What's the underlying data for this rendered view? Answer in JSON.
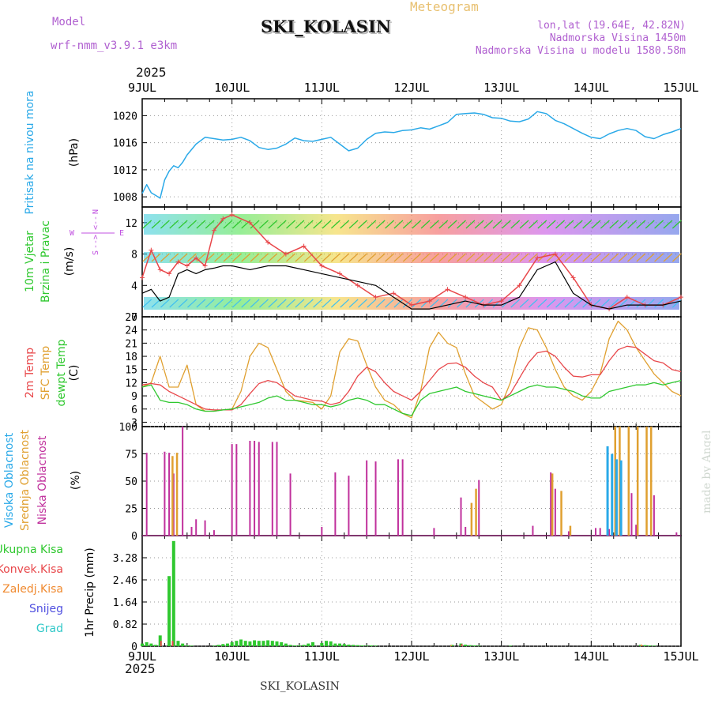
{
  "header": {
    "model_label": "Model",
    "model_name": "wrf-nmm_v3.9.1  e3km",
    "station": "SKI_KOLASIN",
    "meteogram": "Meteogram",
    "lonlat": "lon,lat (19.64E, 42.82N)",
    "altitude": "Nadmorska Visina 1450m",
    "model_altitude": "Nadmorska Visina u modelu 1580.58m",
    "year_top": "2025",
    "year_bottom": "2025",
    "footer_station": "SKI_KOLASIN",
    "credit": "made by Angel"
  },
  "colors": {
    "pressure": "#2aa9e8",
    "temp2m": "#e8474a",
    "sfc_temp": "#e0a030",
    "dewpt": "#2fc82f",
    "high_cloud": "#2aa9e8",
    "mid_cloud": "#e0a030",
    "low_cloud": "#c0309c",
    "total_precip": "#2fc82f",
    "conv_precip": "#e8474a",
    "frozen_precip": "#f08a30",
    "snow": "#5050e0",
    "hail": "#30c8c8",
    "wind_label": "#2fc82f",
    "compass": "#c050e0",
    "meta": "#b060d0",
    "meteogram": "#e8c070"
  },
  "chart_data": [
    {
      "type": "line",
      "panel": "pressure",
      "title": "Pritisak na nivou mora",
      "ylabel": "(hPa)",
      "x_ticks": [
        "9JUL",
        "10JUL",
        "11JUL",
        "12JUL",
        "13JUL",
        "14JUL",
        "15JUL"
      ],
      "ylim": [
        1006.5,
        1022.5
      ],
      "y_ticks": [
        "1008",
        "1012",
        "1016",
        "1020"
      ],
      "y_tick_values": [
        1008,
        1012,
        1016,
        1020
      ],
      "x_days": [
        0,
        0.05,
        0.1,
        0.15,
        0.2,
        0.25,
        0.3,
        0.35,
        0.4,
        0.45,
        0.5,
        0.6,
        0.7,
        0.8,
        0.9,
        1.0,
        1.1,
        1.2,
        1.3,
        1.4,
        1.5,
        1.6,
        1.7,
        1.8,
        1.9,
        2.0,
        2.1,
        2.2,
        2.3,
        2.4,
        2.5,
        2.6,
        2.7,
        2.8,
        2.9,
        3.0,
        3.1,
        3.2,
        3.3,
        3.4,
        3.5,
        3.6,
        3.7,
        3.8,
        3.9,
        4.0,
        4.1,
        4.2,
        4.3,
        4.4,
        4.5,
        4.6,
        4.7,
        4.8,
        4.9,
        5.0,
        5.1,
        5.2,
        5.3,
        5.4,
        5.5,
        5.6,
        5.7,
        5.8,
        5.9,
        6.0
      ],
      "series": [
        {
          "name": "Pritisak",
          "values": [
            1008.5,
            1009.8,
            1008.6,
            1008.2,
            1007.8,
            1010.5,
            1011.8,
            1012.6,
            1012.3,
            1013.1,
            1014.2,
            1015.8,
            1016.8,
            1016.6,
            1016.4,
            1016.5,
            1016.8,
            1016.3,
            1015.3,
            1015.0,
            1015.2,
            1015.8,
            1016.7,
            1016.3,
            1016.2,
            1016.5,
            1016.8,
            1015.8,
            1014.8,
            1015.2,
            1016.5,
            1017.4,
            1017.6,
            1017.5,
            1017.8,
            1017.9,
            1018.2,
            1018.0,
            1018.5,
            1019.0,
            1020.2,
            1020.3,
            1020.4,
            1020.2,
            1019.7,
            1019.6,
            1019.2,
            1019.1,
            1019.5,
            1020.6,
            1020.3,
            1019.3,
            1018.8,
            1018.1,
            1017.4,
            1016.8,
            1016.6,
            1017.3,
            1017.8,
            1018.1,
            1017.8,
            1016.9,
            1016.6,
            1017.2,
            1017.6,
            1018.1
          ]
        }
      ]
    },
    {
      "type": "line",
      "panel": "wind",
      "title": "10m Vjetar Brzina i Pravac",
      "title_line1": "10m Vjetar",
      "title_line2": "Brzina i Pravac",
      "ylabel": "(m/s)",
      "compass_labels": [
        "N",
        "<--",
        "-->",
        "S",
        "W",
        "E"
      ],
      "ylim": [
        0,
        14
      ],
      "y_ticks": [
        "0",
        "4",
        "8",
        "12"
      ],
      "y_tick_values": [
        0,
        4,
        8,
        12
      ],
      "x_days": [
        0,
        0.1,
        0.2,
        0.3,
        0.4,
        0.5,
        0.6,
        0.7,
        0.8,
        0.9,
        1.0,
        1.2,
        1.4,
        1.6,
        1.8,
        2.0,
        2.2,
        2.4,
        2.6,
        2.8,
        3.0,
        3.2,
        3.4,
        3.6,
        3.8,
        4.0,
        4.2,
        4.4,
        4.6,
        4.8,
        5.0,
        5.2,
        5.4,
        5.6,
        5.8,
        6.0
      ],
      "series": [
        {
          "name": "gust",
          "values": [
            5.0,
            8.5,
            6.0,
            5.5,
            7.0,
            6.5,
            7.5,
            6.5,
            11.0,
            12.5,
            13.0,
            12.0,
            9.5,
            8.0,
            9.0,
            6.5,
            5.5,
            4.0,
            2.5,
            3.0,
            1.5,
            2.0,
            3.5,
            2.5,
            1.5,
            2.0,
            4.0,
            7.5,
            8.0,
            5.0,
            1.5,
            1.0,
            2.5,
            1.5,
            1.5,
            2.5
          ]
        },
        {
          "name": "speed",
          "values": [
            3.0,
            3.5,
            2.0,
            2.5,
            5.5,
            6.0,
            5.5,
            6.0,
            6.2,
            6.5,
            6.5,
            6.0,
            6.5,
            6.5,
            6.0,
            5.5,
            5.0,
            4.5,
            4.0,
            2.5,
            1.0,
            1.0,
            1.5,
            2.0,
            1.5,
            1.5,
            2.5,
            6.0,
            7.0,
            3.0,
            1.5,
            1.0,
            1.5,
            1.5,
            1.5,
            2.0
          ]
        }
      ]
    },
    {
      "type": "line",
      "panel": "temperature",
      "title_2m": "2m Temp",
      "title_sfc": "SFC Temp",
      "title_dew": "dewpt Temp",
      "ylabel": "(C)",
      "ylim": [
        2,
        27
      ],
      "y_ticks": [
        "3",
        "6",
        "9",
        "12",
        "15",
        "18",
        "21",
        "24",
        "27"
      ],
      "y_tick_values": [
        3,
        6,
        9,
        12,
        15,
        18,
        21,
        24,
        27
      ],
      "x_days": [
        0,
        0.1,
        0.2,
        0.3,
        0.4,
        0.5,
        0.6,
        0.7,
        0.8,
        0.9,
        1.0,
        1.1,
        1.2,
        1.3,
        1.4,
        1.5,
        1.6,
        1.7,
        1.8,
        1.9,
        2.0,
        2.1,
        2.2,
        2.3,
        2.4,
        2.5,
        2.6,
        2.7,
        2.8,
        2.9,
        3.0,
        3.1,
        3.2,
        3.3,
        3.4,
        3.5,
        3.6,
        3.7,
        3.8,
        3.9,
        4.0,
        4.1,
        4.2,
        4.3,
        4.4,
        4.5,
        4.6,
        4.7,
        4.8,
        4.9,
        5.0,
        5.1,
        5.2,
        5.3,
        5.4,
        5.5,
        5.6,
        5.7,
        5.8,
        5.9,
        6.0
      ],
      "series": [
        {
          "name": "2m Temp",
          "values": [
            11.5,
            11.8,
            11.5,
            10.0,
            9.0,
            8.0,
            7.0,
            6.0,
            5.8,
            5.8,
            5.8,
            7.0,
            9.5,
            11.8,
            12.5,
            12.0,
            10.5,
            9.0,
            8.5,
            8.0,
            7.8,
            7.0,
            7.5,
            10.0,
            13.5,
            15.5,
            14.5,
            12.0,
            10.0,
            9.0,
            8.0,
            10.0,
            12.5,
            15.0,
            16.3,
            16.5,
            15.5,
            13.5,
            12.0,
            11.0,
            8.0,
            9.5,
            13.0,
            16.5,
            18.8,
            19.2,
            18.0,
            15.5,
            13.5,
            13.3,
            13.8,
            13.8,
            17.0,
            19.5,
            20.3,
            20.0,
            18.5,
            17.0,
            16.5,
            15.0,
            14.5
          ]
        },
        {
          "name": "SFC Temp",
          "values": [
            11.0,
            12.0,
            18.0,
            11.0,
            11.0,
            16.0,
            7.0,
            5.5,
            5.5,
            5.8,
            6.0,
            10.0,
            18.0,
            21.0,
            20.0,
            15.0,
            10.0,
            8.0,
            7.8,
            7.5,
            6.0,
            9.0,
            19.0,
            22.0,
            21.5,
            16.0,
            11.0,
            8.0,
            7.0,
            5.0,
            4.0,
            10.0,
            20.0,
            23.5,
            21.0,
            20.0,
            14.0,
            9.0,
            7.5,
            6.0,
            7.0,
            12.0,
            20.0,
            24.5,
            24.0,
            20.0,
            15.0,
            11.0,
            9.0,
            8.0,
            10.0,
            14.0,
            22.0,
            26.0,
            24.0,
            20.0,
            17.0,
            14.0,
            12.0,
            10.0,
            9.0
          ]
        },
        {
          "name": "dewpt Temp",
          "values": [
            11.0,
            11.5,
            8.0,
            7.5,
            7.5,
            7.0,
            6.0,
            5.5,
            5.5,
            5.8,
            6.0,
            6.5,
            7.0,
            7.5,
            8.5,
            9.0,
            8.0,
            8.0,
            7.5,
            7.0,
            7.0,
            6.5,
            7.0,
            8.0,
            8.5,
            8.0,
            7.0,
            7.0,
            6.0,
            5.0,
            4.5,
            8.0,
            9.5,
            10.0,
            10.5,
            11.0,
            10.0,
            9.5,
            9.0,
            8.5,
            8.0,
            9.0,
            10.0,
            11.0,
            11.5,
            11.0,
            11.0,
            10.5,
            10.0,
            9.0,
            8.5,
            8.5,
            10.0,
            10.5,
            11.0,
            11.5,
            11.5,
            12.0,
            11.5,
            12.0,
            12.5
          ]
        }
      ]
    },
    {
      "type": "bar",
      "panel": "clouds",
      "title_high": "Visoka Oblacnost",
      "title_mid": "Srednja Oblacnost",
      "title_low": "Niska Oblacnost",
      "ylabel": "(%)",
      "ylim": [
        0,
        100
      ],
      "y_ticks": [
        "0",
        "25",
        "50",
        "75",
        "100"
      ],
      "y_tick_values": [
        0,
        25,
        50,
        75,
        100
      ],
      "series": [
        {
          "name": "Niska",
          "x_days": [
            0.05,
            0.25,
            0.3,
            0.35,
            0.45,
            0.55,
            0.6,
            0.7,
            0.8,
            1.0,
            1.05,
            1.2,
            1.25,
            1.3,
            1.45,
            1.5,
            1.65,
            2.0,
            2.15,
            2.3,
            2.5,
            2.6,
            2.85,
            2.9,
            3.25,
            3.55,
            3.6,
            3.75,
            4.35,
            4.55,
            4.6,
            4.75,
            5.05,
            5.1,
            5.2,
            5.45,
            5.5,
            5.7,
            5.95
          ],
          "values": [
            76,
            77,
            76,
            57,
            100,
            8,
            15,
            14,
            5,
            84,
            84,
            87,
            87,
            86,
            86,
            86,
            57,
            8,
            58,
            55,
            69,
            68,
            70,
            70,
            7,
            35,
            8,
            51,
            9,
            58,
            43,
            4,
            7,
            7,
            6,
            39,
            10,
            37,
            3
          ]
        },
        {
          "name": "Srednja",
          "x_days": [
            0.32,
            0.37,
            3.65,
            3.7,
            4.55,
            4.65,
            4.75,
            5.25,
            5.3,
            5.4,
            5.5,
            5.6,
            5.65
          ],
          "values": [
            73,
            76,
            30,
            43,
            57,
            41,
            9,
            100,
            100,
            100,
            100,
            100,
            100
          ]
        },
        {
          "name": "Visoka",
          "x_days": [
            5.2,
            5.25,
            5.3,
            5.35
          ],
          "values": [
            82,
            75,
            70,
            69
          ]
        }
      ]
    },
    {
      "type": "bar",
      "panel": "precip",
      "title_total": "Ukupna Kisa",
      "title_conv": "Konvek.Kisa",
      "title_frozen": "Zaledj.Kisa",
      "title_snow": "Snijeg",
      "title_hail": "Grad",
      "ylabel": "1hr Precip (mm)",
      "ylim": [
        0,
        4.1
      ],
      "y_ticks": [
        "0",
        "0.82",
        "1.64",
        "2.46",
        "3.28"
      ],
      "y_tick_values": [
        0,
        0.82,
        1.64,
        2.46,
        3.28
      ],
      "series": [
        {
          "name": "Ukupna Kisa",
          "x_days": [
            0.0,
            0.05,
            0.1,
            0.15,
            0.2,
            0.3,
            0.35,
            0.4,
            0.45,
            0.5,
            0.55,
            0.8,
            0.85,
            0.9,
            0.95,
            1.0,
            1.05,
            1.1,
            1.15,
            1.2,
            1.25,
            1.3,
            1.35,
            1.4,
            1.45,
            1.5,
            1.55,
            1.6,
            1.65,
            1.7,
            1.75,
            1.8,
            1.85,
            1.9,
            2.0,
            2.05,
            2.1,
            2.15,
            2.2,
            2.25,
            2.3,
            2.35,
            2.4,
            2.45,
            2.5,
            2.55,
            2.6,
            3.45,
            3.55,
            3.6,
            3.65,
            3.7,
            3.75,
            4.1,
            5.55,
            5.6,
            5.65,
            5.7
          ],
          "values": [
            0.1,
            0.15,
            0.1,
            0.05,
            0.4,
            2.6,
            3.9,
            0.2,
            0.1,
            0.03,
            0.02,
            0.02,
            0.05,
            0.08,
            0.1,
            0.15,
            0.2,
            0.25,
            0.2,
            0.18,
            0.22,
            0.2,
            0.2,
            0.22,
            0.2,
            0.18,
            0.15,
            0.1,
            0.05,
            0.03,
            0.03,
            0.05,
            0.1,
            0.15,
            0.12,
            0.2,
            0.18,
            0.1,
            0.1,
            0.08,
            0.06,
            0.05,
            0.04,
            0.03,
            0.02,
            0.03,
            0.02,
            0.05,
            0.1,
            0.06,
            0.04,
            0.03,
            0.02,
            0.02,
            0.05,
            0.04,
            0.03,
            0.02
          ]
        },
        {
          "name": "Konvek.Kisa",
          "x_days": [
            0.2,
            0.33,
            3.55,
            5.55
          ],
          "values": [
            0.2,
            0.2,
            0.08,
            0.04
          ]
        },
        {
          "name": "Zaledj.Kisa",
          "x_days": [
            3.45,
            5.57
          ],
          "values": [
            0.04,
            0.06
          ]
        }
      ]
    }
  ]
}
